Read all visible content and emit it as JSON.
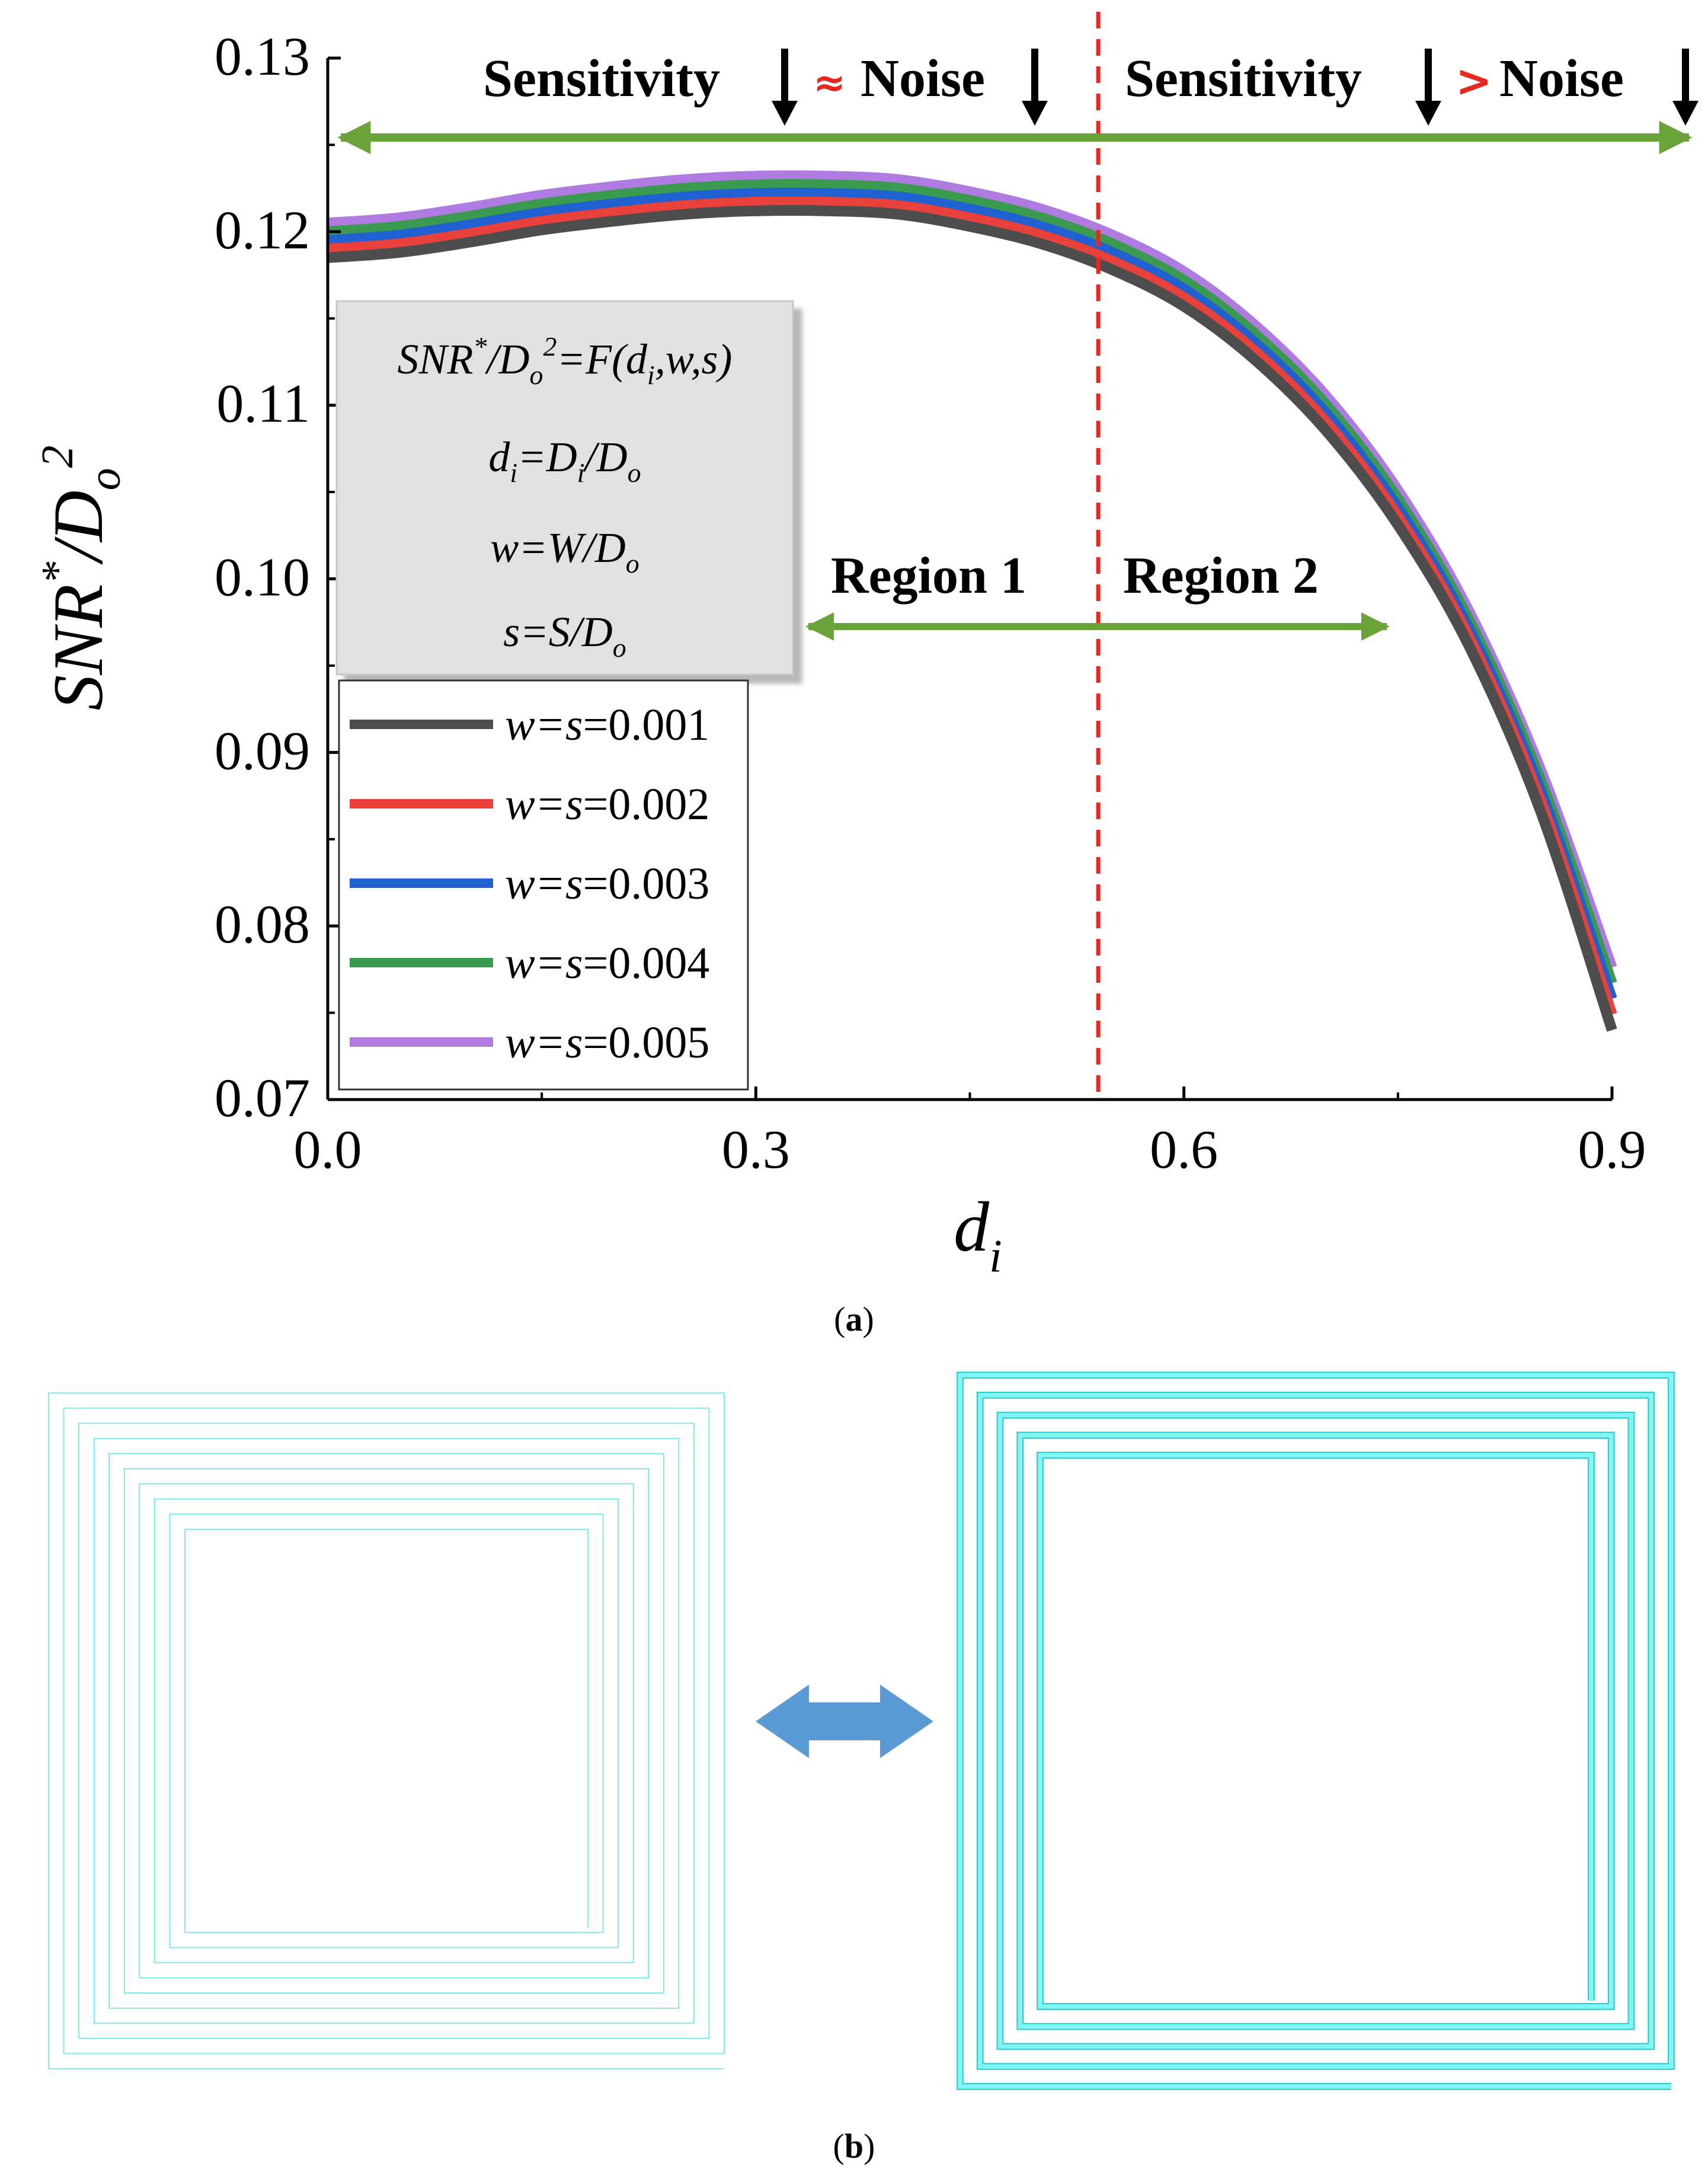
{
  "panel_a_label": "a",
  "panel_b_label": "b",
  "chart_data": {
    "type": "line",
    "title": "",
    "xlabel": "d",
    "xlabel_sub": "i",
    "ylabel": {
      "main": "SNR",
      "sup": "*",
      "slash": "/D",
      "sub": "o",
      "sup2": "2"
    },
    "xlim": [
      0.0,
      0.9
    ],
    "ylim": [
      0.07,
      0.13
    ],
    "xticks": [
      "0.0",
      "0.3",
      "0.6",
      "0.9"
    ],
    "xtick_values": [
      0.0,
      0.3,
      0.6,
      0.9
    ],
    "yticks": [
      "0.07",
      "0.08",
      "0.09",
      "0.10",
      "0.11",
      "0.12",
      "0.13"
    ],
    "ytick_values": [
      0.07,
      0.08,
      0.09,
      0.1,
      0.11,
      0.12,
      0.13
    ],
    "divider_x": 0.54,
    "x": [
      0.0,
      0.05,
      0.1,
      0.15,
      0.2,
      0.25,
      0.3,
      0.35,
      0.4,
      0.45,
      0.5,
      0.55,
      0.6,
      0.65,
      0.7,
      0.75,
      0.8,
      0.85,
      0.9
    ],
    "series": [
      {
        "name": "w=s=0.001",
        "color": "#4d4d4d",
        "values": [
          0.1185,
          0.1188,
          0.1194,
          0.1201,
          0.1206,
          0.121,
          0.1212,
          0.1212,
          0.121,
          0.1203,
          0.1193,
          0.1178,
          0.1157,
          0.1126,
          0.1085,
          0.1031,
          0.0961,
          0.0866,
          0.074
        ]
      },
      {
        "name": "w=s=0.002",
        "color": "#e8403a",
        "values": [
          0.119,
          0.1193,
          0.1199,
          0.1206,
          0.1211,
          0.1215,
          0.1217,
          0.1217,
          0.1215,
          0.1208,
          0.1198,
          0.1183,
          0.1162,
          0.1131,
          0.109,
          0.1036,
          0.0966,
          0.0872,
          0.0749
        ]
      },
      {
        "name": "w=s=0.003",
        "color": "#2060d0",
        "values": [
          0.1195,
          0.1198,
          0.1204,
          0.1211,
          0.1216,
          0.122,
          0.1222,
          0.1222,
          0.122,
          0.1213,
          0.1203,
          0.1188,
          0.1167,
          0.1136,
          0.1095,
          0.1041,
          0.0971,
          0.0878,
          0.0758
        ]
      },
      {
        "name": "w=s=0.004",
        "color": "#3a9a50",
        "values": [
          0.12,
          0.1203,
          0.1209,
          0.1216,
          0.1221,
          0.1225,
          0.1227,
          0.1227,
          0.1225,
          0.1218,
          0.1208,
          0.1193,
          0.1172,
          0.1141,
          0.11,
          0.1046,
          0.0976,
          0.0884,
          0.0767
        ]
      },
      {
        "name": "w=s=0.005",
        "color": "#b07be0",
        "values": [
          0.1205,
          0.1208,
          0.1214,
          0.1221,
          0.1226,
          0.123,
          0.1232,
          0.1232,
          0.123,
          0.1223,
          0.1213,
          0.1198,
          0.1177,
          0.1146,
          0.1105,
          0.1051,
          0.0981,
          0.089,
          0.0776
        ]
      }
    ],
    "annotations": {
      "top_left": {
        "a": "Sensitivity",
        "op": "≈",
        "b": "Noise"
      },
      "top_right": {
        "a": "Sensitivity",
        "op": ">",
        "b": "Noise"
      },
      "region1": "Region 1",
      "region2": "Region 2"
    },
    "equation_box": {
      "line1": {
        "lhs": "SNR",
        "sup": "*",
        "mid": "/D",
        "sub": "o",
        "sup2": "2",
        "rhs": "=F(d",
        "sub_i": "i",
        "rest": ",w,s)"
      },
      "line2": {
        "a": "d",
        "a_sub": "i",
        "b": "=D",
        "b_sub": "i",
        "c": "/D",
        "c_sub": "o"
      },
      "line3": {
        "a": "w=W/D",
        "a_sub": "o"
      },
      "line4": {
        "a": "s=S/D",
        "a_sub": "o"
      }
    },
    "colors": {
      "arrow": "#6aa33a",
      "divider": "#e8281e",
      "op": "#e8281e",
      "box": "#e1e1e1",
      "coil": "#7ff5f5",
      "coil_edge": "#2ec8c8",
      "double_arrow": "#5b9bd5"
    }
  }
}
